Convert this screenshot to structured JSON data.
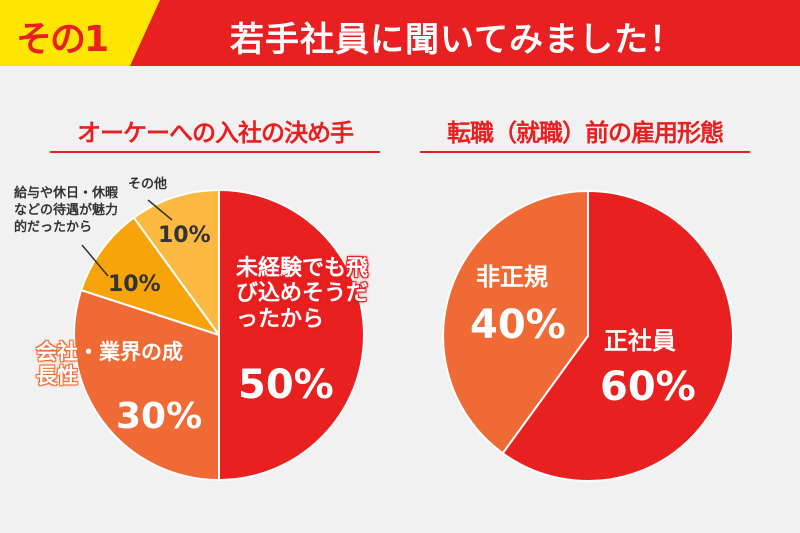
{
  "header": {
    "badge": "その1",
    "title": "若手社員に聞いてみました！"
  },
  "colors": {
    "header_red": "#e92022",
    "badge_yellow": "#ffe600"
  },
  "chart_data": [
    {
      "type": "pie",
      "title": "オーケーへの入社の決め手",
      "slices": [
        {
          "label": "未経験でも飛び込めそうだったから",
          "value": 50,
          "display": "50%",
          "color": "#e8201f"
        },
        {
          "label": "会社・業界の成長性",
          "value": 30,
          "display": "30%",
          "color": "#f06a35"
        },
        {
          "label": "給与や休日・休暇などの待遇が魅力的だったから",
          "value": 10,
          "display": "10%",
          "color": "#f7a30a"
        },
        {
          "label": "その他",
          "value": 10,
          "display": "10%",
          "color": "#fbb942"
        }
      ]
    },
    {
      "type": "pie",
      "title": "転職（就職）前の雇用形態",
      "slices": [
        {
          "label": "正社員",
          "value": 60,
          "display": "60%",
          "color": "#e8201f"
        },
        {
          "label": "非正規",
          "value": 40,
          "display": "40%",
          "color": "#f06a35"
        }
      ]
    }
  ]
}
